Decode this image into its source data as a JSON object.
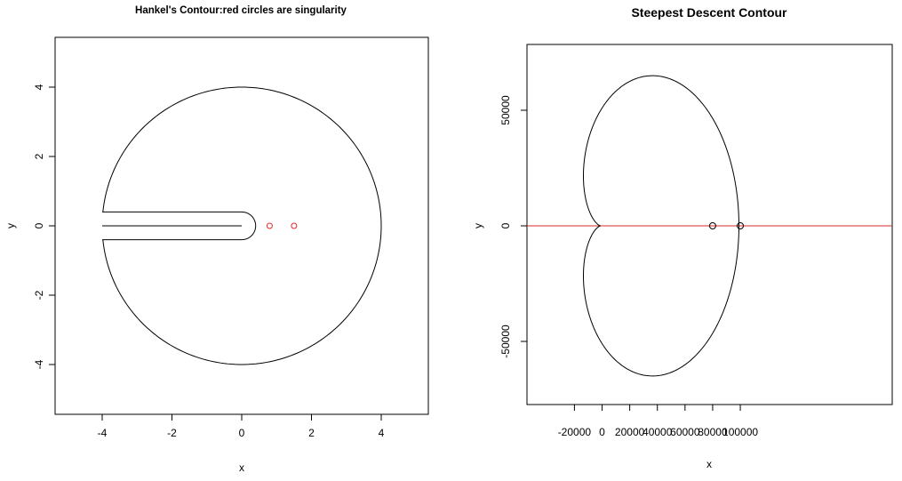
{
  "chart_data": [
    {
      "type": "line",
      "title": "Hankel's Contour:red circles are singularity",
      "xlabel": "x",
      "ylabel": "y",
      "xlim": [
        -5.5,
        5.5
      ],
      "ylim": [
        -5.3,
        5.3
      ],
      "x_ticks": [
        -4,
        -2,
        0,
        2,
        4
      ],
      "y_ticks": [
        -4,
        -2,
        0,
        2,
        4
      ],
      "grid": false,
      "contour": {
        "outer_radius": 4,
        "inner_radius": 0.4,
        "slit_half_width": 0.4,
        "slit_start_x": -4
      },
      "center_line": {
        "x": [
          -4,
          0
        ],
        "y": [
          0,
          0
        ]
      },
      "points": [
        {
          "x": 0.8,
          "y": 0,
          "color": "#e8262a"
        },
        {
          "x": 1.5,
          "y": 0,
          "color": "#e8262a"
        }
      ],
      "colors": {
        "curve": "#000000",
        "singularity": "#e8262a"
      }
    },
    {
      "type": "line",
      "title": "Steepest Descent Contour",
      "xlabel": "x",
      "ylabel": "y",
      "xlim": [
        -25000,
        105000
      ],
      "ylim": [
        -78000,
        78000
      ],
      "x_ticks": [
        -20000,
        0,
        20000,
        40000,
        60000,
        80000,
        100000
      ],
      "y_ticks": [
        -50000,
        0,
        50000
      ],
      "grid": false,
      "cardioid": {
        "a": 25000,
        "cusp_x": -1000,
        "rightmost_x": 100000
      },
      "horizontal_line": {
        "y": 0,
        "color": "#d62b2b"
      },
      "points": [
        {
          "x": 80000,
          "y": 0,
          "color": "#000000"
        },
        {
          "x": 100000,
          "y": 0,
          "color": "#000000"
        }
      ],
      "colors": {
        "curve": "#000000",
        "axis_line": "#d62b2b"
      }
    }
  ]
}
